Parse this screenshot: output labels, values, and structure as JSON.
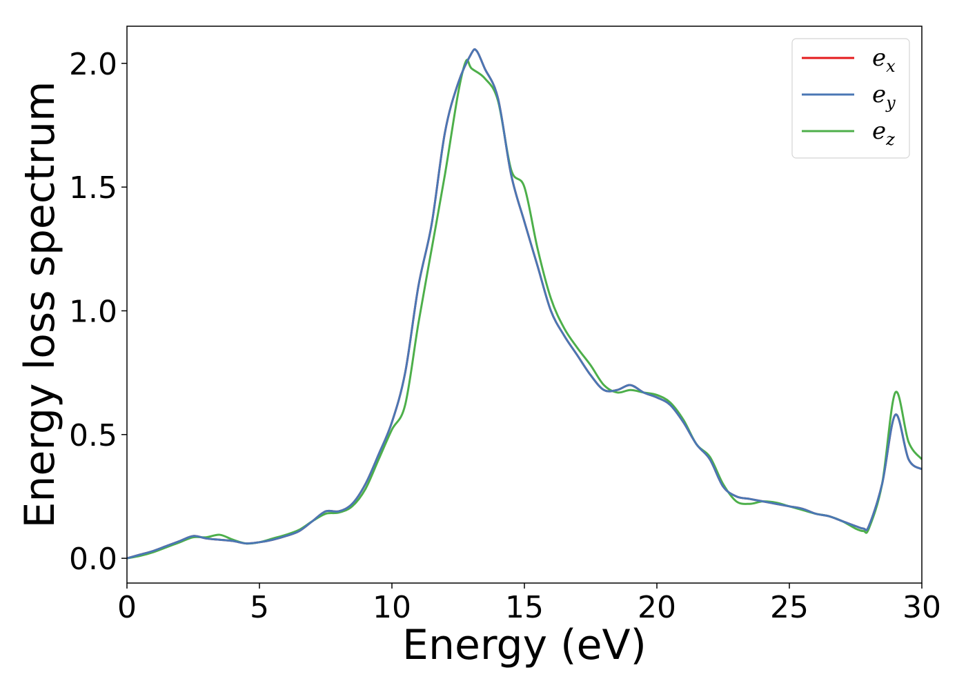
{
  "chart_data": {
    "type": "line",
    "xlabel": "Energy (eV)",
    "ylabel": "Energy loss spectrum",
    "xlim": [
      0,
      30
    ],
    "ylim": [
      -0.1,
      2.15
    ],
    "xticks": [
      0,
      5,
      10,
      15,
      20,
      25,
      30
    ],
    "xtick_labels": [
      "0",
      "5",
      "10",
      "15",
      "20",
      "25",
      "30"
    ],
    "yticks": [
      0.0,
      0.5,
      1.0,
      1.5,
      2.0
    ],
    "ytick_labels": [
      "0.0",
      "0.5",
      "1.0",
      "1.5",
      "2.0"
    ],
    "grid": false,
    "legend_position": "top-right",
    "series": [
      {
        "name": "e_x",
        "legend_base": "e",
        "legend_sub": "x",
        "color": "#e41a1c",
        "x": [
          0,
          0.5,
          1,
          1.5,
          2,
          2.5,
          3,
          3.5,
          4,
          4.5,
          5,
          5.5,
          6,
          6.5,
          7,
          7.5,
          8,
          8.5,
          9,
          9.5,
          10,
          10.5,
          11,
          11.5,
          12,
          12.5,
          13,
          13.2,
          13.5,
          14,
          14.5,
          15,
          15.5,
          16,
          16.5,
          17,
          17.5,
          18,
          18.5,
          19,
          19.5,
          20,
          20.5,
          21,
          21.5,
          22,
          22.5,
          23,
          23.5,
          24,
          24.5,
          25,
          25.5,
          26,
          26.5,
          27,
          27.5,
          27.8,
          28,
          28.5,
          29,
          29.5,
          30
        ],
        "y": [
          0.0,
          0.015,
          0.03,
          0.05,
          0.07,
          0.09,
          0.08,
          0.075,
          0.07,
          0.06,
          0.065,
          0.075,
          0.09,
          0.11,
          0.15,
          0.19,
          0.19,
          0.22,
          0.3,
          0.42,
          0.55,
          0.75,
          1.1,
          1.35,
          1.72,
          1.92,
          2.04,
          2.05,
          1.98,
          1.86,
          1.55,
          1.36,
          1.18,
          1.0,
          0.9,
          0.82,
          0.74,
          0.68,
          0.68,
          0.7,
          0.67,
          0.65,
          0.62,
          0.55,
          0.46,
          0.4,
          0.29,
          0.25,
          0.24,
          0.23,
          0.22,
          0.21,
          0.2,
          0.18,
          0.17,
          0.15,
          0.13,
          0.12,
          0.13,
          0.3,
          0.58,
          0.4,
          0.36
        ]
      },
      {
        "name": "e_y",
        "legend_base": "e",
        "legend_sub": "y",
        "color": "#4a77b4",
        "x": [
          0,
          0.5,
          1,
          1.5,
          2,
          2.5,
          3,
          3.5,
          4,
          4.5,
          5,
          5.5,
          6,
          6.5,
          7,
          7.5,
          8,
          8.5,
          9,
          9.5,
          10,
          10.5,
          11,
          11.5,
          12,
          12.5,
          13,
          13.2,
          13.5,
          14,
          14.5,
          15,
          15.5,
          16,
          16.5,
          17,
          17.5,
          18,
          18.5,
          19,
          19.5,
          20,
          20.5,
          21,
          21.5,
          22,
          22.5,
          23,
          23.5,
          24,
          24.5,
          25,
          25.5,
          26,
          26.5,
          27,
          27.5,
          27.8,
          28,
          28.5,
          29,
          29.5,
          30
        ],
        "y": [
          0.0,
          0.015,
          0.03,
          0.05,
          0.07,
          0.09,
          0.08,
          0.075,
          0.07,
          0.06,
          0.065,
          0.075,
          0.09,
          0.11,
          0.15,
          0.19,
          0.19,
          0.22,
          0.3,
          0.42,
          0.55,
          0.75,
          1.1,
          1.35,
          1.72,
          1.92,
          2.04,
          2.05,
          1.98,
          1.86,
          1.55,
          1.36,
          1.18,
          1.0,
          0.9,
          0.82,
          0.74,
          0.68,
          0.68,
          0.7,
          0.67,
          0.65,
          0.62,
          0.55,
          0.46,
          0.4,
          0.29,
          0.25,
          0.24,
          0.23,
          0.22,
          0.21,
          0.2,
          0.18,
          0.17,
          0.15,
          0.13,
          0.12,
          0.13,
          0.3,
          0.58,
          0.4,
          0.36
        ]
      },
      {
        "name": "e_z",
        "legend_base": "e",
        "legend_sub": "z",
        "color": "#4daf4a",
        "x": [
          0,
          0.5,
          1,
          1.5,
          2,
          2.5,
          3,
          3.5,
          4,
          4.5,
          5,
          5.5,
          6,
          6.5,
          7,
          7.5,
          8,
          8.5,
          9,
          9.5,
          10,
          10.5,
          11,
          11.5,
          12,
          12.5,
          12.8,
          13,
          13.5,
          14,
          14.5,
          15,
          15.5,
          16,
          16.5,
          17,
          17.5,
          18,
          18.5,
          19,
          19.5,
          20,
          20.5,
          21,
          21.5,
          22,
          22.5,
          23,
          23.5,
          24,
          24.5,
          25,
          25.5,
          26,
          26.5,
          27,
          27.5,
          27.8,
          28,
          28.5,
          29,
          29.5,
          30
        ],
        "y": [
          0.0,
          0.01,
          0.025,
          0.045,
          0.065,
          0.085,
          0.085,
          0.095,
          0.075,
          0.06,
          0.065,
          0.08,
          0.095,
          0.115,
          0.15,
          0.18,
          0.185,
          0.21,
          0.28,
          0.4,
          0.52,
          0.62,
          0.95,
          1.25,
          1.55,
          1.88,
          2.01,
          1.98,
          1.94,
          1.85,
          1.57,
          1.5,
          1.25,
          1.05,
          0.93,
          0.85,
          0.78,
          0.7,
          0.67,
          0.68,
          0.67,
          0.66,
          0.63,
          0.56,
          0.46,
          0.41,
          0.3,
          0.23,
          0.22,
          0.23,
          0.225,
          0.21,
          0.195,
          0.18,
          0.17,
          0.15,
          0.12,
          0.11,
          0.12,
          0.3,
          0.67,
          0.47,
          0.4
        ]
      }
    ]
  }
}
